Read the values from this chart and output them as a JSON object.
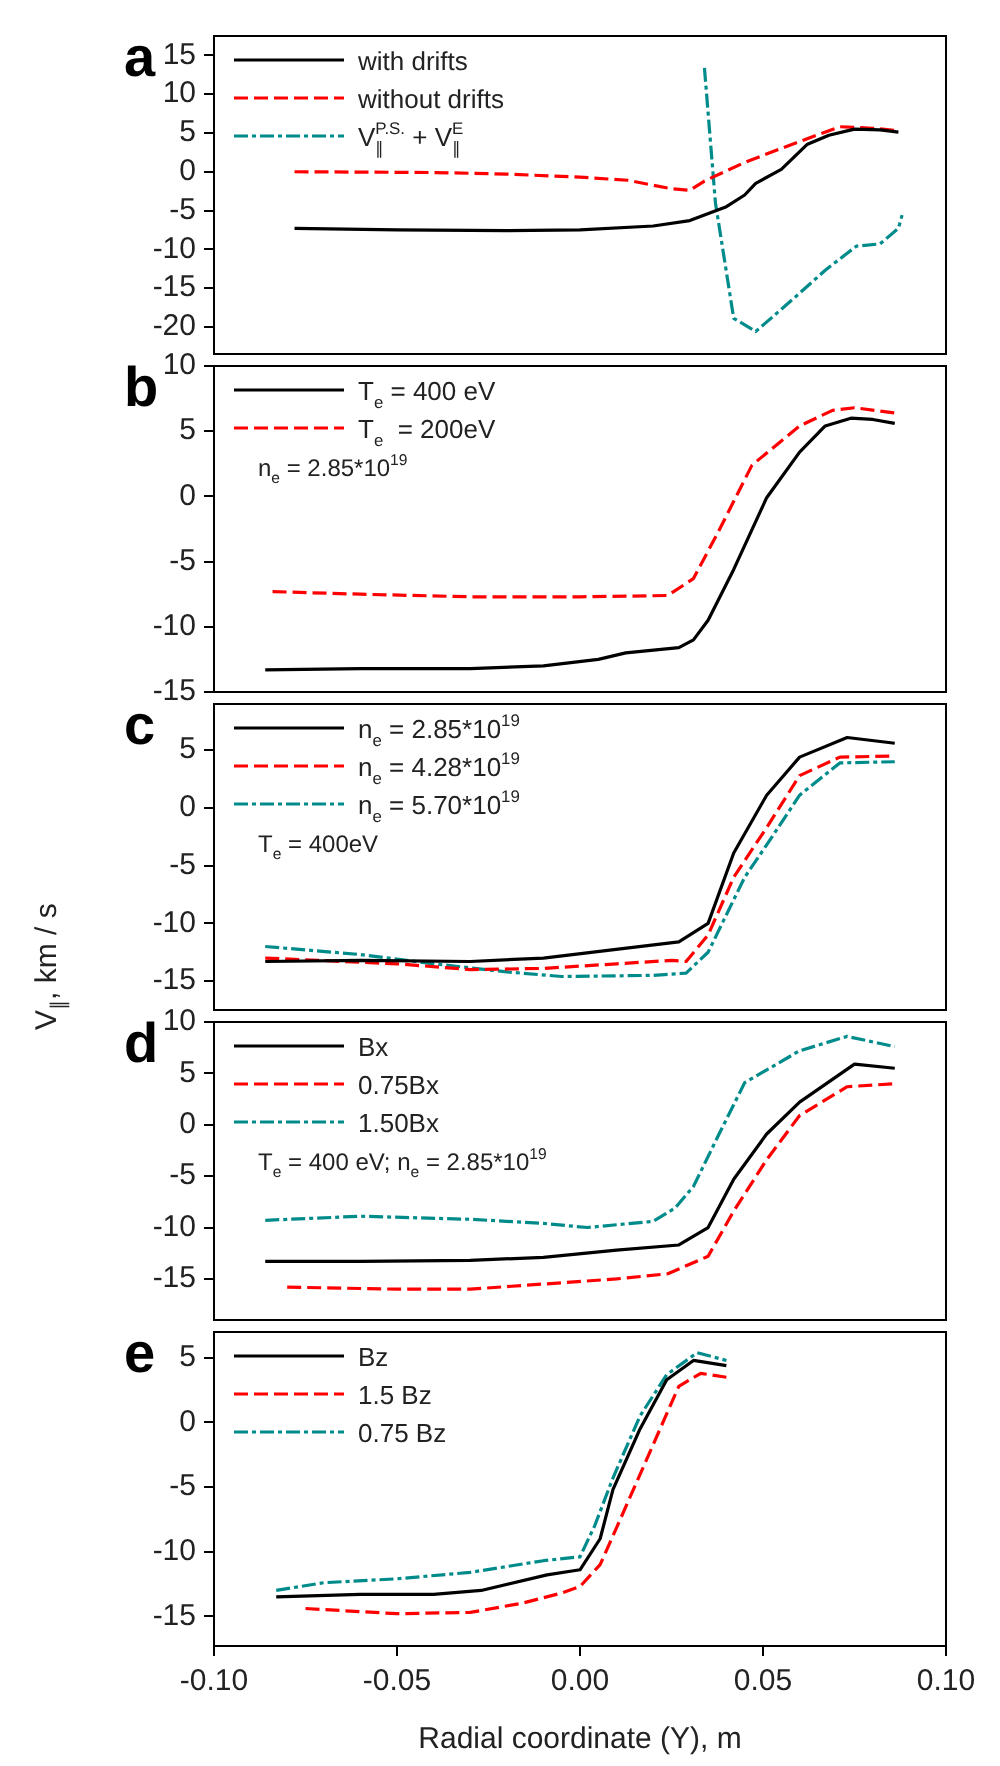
{
  "chart_data": [
    {
      "type": "line",
      "title": "a",
      "xlim": [
        -0.1,
        0.1
      ],
      "ylim": [
        -23.5,
        17.5
      ],
      "yticks": [
        15,
        10,
        5,
        0,
        -5,
        -10,
        -15,
        -20
      ],
      "tick_labels": "y",
      "grid": false,
      "legend": "top left",
      "marker": "none",
      "series": [
        {
          "name": "with drifts",
          "color": "#000000",
          "line_style": "solid",
          "x": [
            -0.078,
            -0.05,
            -0.02,
            0.0,
            0.02,
            0.03,
            0.04,
            0.045,
            0.048,
            0.055,
            0.062,
            0.068,
            0.075,
            0.082,
            0.087
          ],
          "values": [
            -7.3,
            -7.5,
            -7.6,
            -7.5,
            -7.0,
            -6.3,
            -4.5,
            -3.0,
            -1.5,
            0.3,
            3.5,
            4.7,
            5.5,
            5.4,
            5.1
          ]
        },
        {
          "name": "without drifts",
          "color": "#ff0000",
          "line_style": "dashed",
          "x": [
            -0.078,
            -0.04,
            -0.02,
            0.0,
            0.013,
            0.025,
            0.03,
            0.034,
            0.045,
            0.06,
            0.071,
            0.08,
            0.087
          ],
          "values": [
            0,
            -0.1,
            -0.3,
            -0.7,
            -1.1,
            -2.2,
            -2.4,
            -1.2,
            1.2,
            3.9,
            5.8,
            5.6,
            5.3
          ]
        },
        {
          "name": "V$_{∥}$$^{P.S.}$ + V$_{∥}$$^{E}$",
          "color": "#008b8b",
          "line_style": "dashdot",
          "x": [
            0.034,
            0.037,
            0.042,
            0.048,
            0.058,
            0.067,
            0.0755,
            0.082,
            0.087,
            0.088
          ],
          "values": [
            13.4,
            -4,
            -18.9,
            -20.6,
            -16.5,
            -12.7,
            -9.6,
            -9.3,
            -7.3,
            -5.6
          ]
        }
      ]
    },
    {
      "type": "line",
      "title": "b",
      "xlim": [
        -0.1,
        0.1
      ],
      "ylim": [
        -15,
        10
      ],
      "yticks": [
        10,
        5,
        0,
        -5,
        -10,
        -15
      ],
      "tick_labels": "y",
      "grid": false,
      "legend": "top left",
      "marker": "none",
      "annotations": [
        "n$_{e}$ = 2.85*10$^{19}$"
      ],
      "series": [
        {
          "name": "T$_{e}$ = 400 eV",
          "color": "#000000",
          "line_style": "solid",
          "x": [
            -0.086,
            -0.06,
            -0.03,
            -0.01,
            0.005,
            0.0125,
            0.027,
            0.031,
            0.035,
            0.042,
            0.051,
            0.06,
            0.067,
            0.074,
            0.08,
            0.086
          ],
          "values": [
            -13.3,
            -13.2,
            -13.2,
            -13.0,
            -12.5,
            -12.0,
            -11.6,
            -11.0,
            -9.5,
            -5.6,
            -0.1,
            3.4,
            5.4,
            6.0,
            5.9,
            5.6
          ]
        },
        {
          "name": "T$_{e}$  = 200eV",
          "color": "#ff0000",
          "line_style": "dashed",
          "x": [
            -0.084,
            -0.06,
            -0.03,
            0.0,
            0.024,
            0.031,
            0.038,
            0.047,
            0.06,
            0.069,
            0.075,
            0.086
          ],
          "values": [
            -7.3,
            -7.5,
            -7.7,
            -7.7,
            -7.6,
            -6.3,
            -2.6,
            2.4,
            5.4,
            6.6,
            6.8,
            6.4
          ]
        }
      ]
    },
    {
      "type": "line",
      "title": "c",
      "ylabel": "V$_{∥}$, km / s",
      "xlim": [
        -0.1,
        0.1
      ],
      "ylim": [
        -17.5,
        9
      ],
      "yticks": [
        5,
        0,
        -5,
        -10,
        -15
      ],
      "tick_labels": "y",
      "grid": false,
      "legend": "top left",
      "marker": "none",
      "annotations": [
        "T$_{e}$ = 400eV"
      ],
      "series": [
        {
          "name": "n$_{e}$ = 2.85*10$^{19}$",
          "color": "#000000",
          "line_style": "solid",
          "x": [
            -0.086,
            -0.06,
            -0.03,
            -0.01,
            0.011,
            0.027,
            0.035,
            0.042,
            0.051,
            0.06,
            0.073,
            0.086
          ],
          "values": [
            -13.3,
            -13.2,
            -13.3,
            -13.0,
            -12.2,
            -11.6,
            -10,
            -3.9,
            1.1,
            4.4,
            6.1,
            5.6
          ]
        },
        {
          "name": "n$_{e}$ = 4.28*10$^{19}$",
          "color": "#ff0000",
          "line_style": "dashed",
          "x": [
            -0.086,
            -0.05,
            -0.03,
            -0.01,
            0.01,
            0.025,
            0.029,
            0.035,
            0.042,
            0.051,
            0.06,
            0.071,
            0.086
          ],
          "values": [
            -13,
            -13.5,
            -14.0,
            -13.9,
            -13.5,
            -13.2,
            -13.3,
            -11,
            -6,
            -1.7,
            2.8,
            4.4,
            4.5
          ]
        },
        {
          "name": "n$_{e}$ = 5.70*10$^{19}$",
          "color": "#008b8b",
          "line_style": "dashdot",
          "x": [
            -0.086,
            -0.06,
            -0.04,
            -0.02,
            -0.005,
            0.02,
            0.029,
            0.035,
            0.045,
            0.051,
            0.06,
            0.071,
            0.086
          ],
          "values": [
            -12,
            -12.7,
            -13.5,
            -14.2,
            -14.6,
            -14.5,
            -14.3,
            -12.5,
            -6,
            -3.2,
            1.1,
            3.9,
            4.0
          ]
        }
      ]
    },
    {
      "type": "line",
      "title": "d",
      "xlim": [
        -0.1,
        0.1
      ],
      "ylim": [
        -19,
        10
      ],
      "yticks": [
        10,
        5,
        0,
        -5,
        -10,
        -15
      ],
      "tick_labels": "y",
      "grid": false,
      "legend": "top left",
      "marker": "none",
      "annotations": [
        "T$_{e}$ = 400 eV; n$_{e}$ = 2.85*10$^{19}$"
      ],
      "series": [
        {
          "name": "Bx",
          "color": "#000000",
          "line_style": "solid",
          "x": [
            -0.086,
            -0.06,
            -0.03,
            -0.01,
            0.01,
            0.027,
            0.035,
            0.042,
            0.051,
            0.06,
            0.075,
            0.086
          ],
          "values": [
            -13.3,
            -13.3,
            -13.2,
            -12.9,
            -12.2,
            -11.7,
            -10,
            -5.3,
            -0.9,
            2.2,
            5.9,
            5.5
          ]
        },
        {
          "name": "0.75Bx",
          "color": "#ff0000",
          "line_style": "dashed",
          "x": [
            -0.08,
            -0.05,
            -0.03,
            -0.01,
            0.01,
            0.024,
            0.035,
            0.042,
            0.051,
            0.06,
            0.073,
            0.086
          ],
          "values": [
            -15.8,
            -16,
            -16,
            -15.5,
            -15.0,
            -14.5,
            -12.8,
            -8.4,
            -3.4,
            0.9,
            3.7,
            4.0
          ]
        },
        {
          "name": "1.50Bx",
          "color": "#008b8b",
          "line_style": "dashdot",
          "x": [
            -0.086,
            -0.06,
            -0.03,
            -0.01,
            0.002,
            0.02,
            0.026,
            0.031,
            0.038,
            0.045,
            0.06,
            0.073,
            0.086
          ],
          "values": [
            -9.3,
            -8.9,
            -9.2,
            -9.6,
            -10,
            -9.4,
            -8.1,
            -6,
            -0.9,
            4.1,
            7.2,
            8.6,
            7.6
          ]
        }
      ]
    },
    {
      "type": "line",
      "title": "e",
      "xlabel": "Radial coordinate (Y), m",
      "xlim": [
        -0.1,
        0.1
      ],
      "xticks": [
        {
          "value": -0.1,
          "label": "-0.10"
        },
        {
          "value": -0.05,
          "label": "-0.05"
        },
        {
          "value": 0,
          "label": "0.00"
        },
        {
          "value": 0.05,
          "label": "0.05"
        },
        {
          "value": 0.1,
          "label": "0.10"
        }
      ],
      "ylim": [
        -17.3,
        7
      ],
      "yticks": [
        5,
        0,
        -5,
        -10,
        -15
      ],
      "grid": false,
      "legend": "top left",
      "marker": "none",
      "series": [
        {
          "name": "Bz",
          "color": "#000000",
          "line_style": "solid",
          "x": [
            -0.083,
            -0.06,
            -0.04,
            -0.027,
            -0.009,
            0.0,
            0.0055,
            0.009,
            0.0164,
            0.0237,
            0.031,
            0.04
          ],
          "values": [
            -13.5,
            -13.3,
            -13.3,
            -13.0,
            -11.8,
            -11.4,
            -9,
            -5.2,
            -0.5,
            3.3,
            4.8,
            4.4
          ]
        },
        {
          "name": "1.5 Bz",
          "color": "#ff0000",
          "line_style": "dashed",
          "x": [
            -0.075,
            -0.05,
            -0.03,
            -0.016,
            -0.005,
            0.0,
            0.0055,
            0.011,
            0.018,
            0.027,
            0.033,
            0.04
          ],
          "values": [
            -14.4,
            -14.8,
            -14.7,
            -14.0,
            -13.2,
            -12.7,
            -11,
            -7.5,
            -3,
            2.8,
            3.8,
            3.5
          ]
        },
        {
          "name": "0.75 Bz",
          "color": "#008b8b",
          "line_style": "dashdot",
          "x": [
            -0.083,
            -0.07,
            -0.05,
            -0.03,
            -0.01,
            0.0,
            0.004,
            0.009,
            0.0164,
            0.0237,
            0.032,
            0.04
          ],
          "values": [
            -13,
            -12.4,
            -12.1,
            -11.6,
            -10.7,
            -10.4,
            -8,
            -4.3,
            0.5,
            3.7,
            5.4,
            4.8
          ]
        }
      ]
    }
  ]
}
